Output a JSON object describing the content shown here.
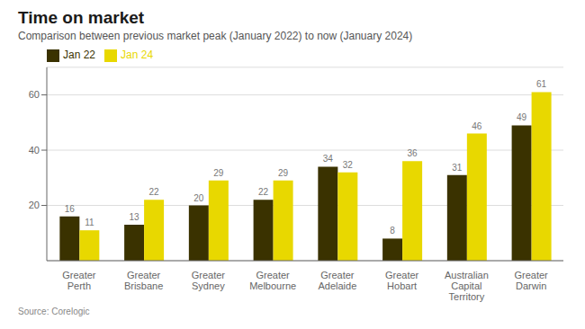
{
  "chart_data": {
    "type": "bar",
    "title": "Time on market",
    "subtitle": "Comparison between previous market peak (January 2022) to now (January 2024)",
    "annotations": [
      "Source: Corelogic"
    ],
    "categories": [
      "Greater\nPerth",
      "Greater\nBrisbane",
      "Greater\nSydney",
      "Greater\nMelbourne",
      "Greater\nAdelaide",
      "Greater\nHobart",
      "Australian\nCapital\nTerritory",
      "Greater\nDarwin"
    ],
    "series": [
      {
        "name": "Jan 22",
        "color": "#3a3200",
        "values": [
          16,
          13,
          20,
          22,
          34,
          8,
          31,
          49
        ]
      },
      {
        "name": "Jan 24",
        "color": "#e8d800",
        "values": [
          11,
          22,
          29,
          29,
          32,
          36,
          46,
          61
        ]
      }
    ],
    "ylim": [
      0,
      70
    ],
    "yticks": [
      20,
      40,
      60
    ],
    "grid": true,
    "legend": "upper left",
    "data_labels": true
  }
}
